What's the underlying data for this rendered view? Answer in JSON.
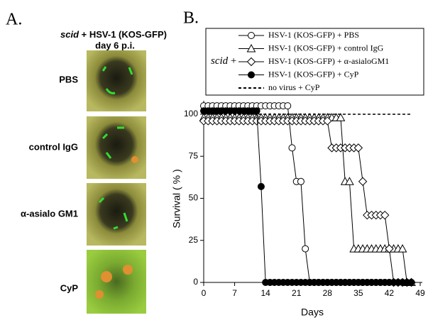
{
  "panel_a": {
    "label": "A.",
    "title": {
      "italic": "scid",
      "rest": "+ HSV-1 (KOS-GFP)"
    },
    "subtitle": "day 6 p.i.",
    "image_labels": [
      "PBS",
      "control IgG",
      "α-asialo GM1",
      "CyP"
    ]
  },
  "chart_data": {
    "type": "line",
    "panel_label": "B.",
    "x_label": "Days",
    "y_label": "Survival ( % )",
    "xlim": [
      0,
      49
    ],
    "ylim": [
      0,
      108
    ],
    "xticks": [
      0,
      7,
      14,
      21,
      28,
      35,
      42,
      49
    ],
    "yticks": [
      0,
      25,
      50,
      75,
      100
    ],
    "legend_prefix": {
      "italic": "scid",
      "rest": "+"
    },
    "x": [
      0,
      1,
      2,
      3,
      4,
      5,
      6,
      7,
      8,
      9,
      10,
      11,
      12,
      13,
      14,
      15,
      16,
      17,
      18,
      19,
      20,
      21,
      22,
      23,
      24,
      25,
      26,
      27,
      28,
      29,
      30,
      31,
      32,
      33,
      34,
      35,
      36,
      37,
      38,
      39,
      40,
      41,
      42,
      43,
      44,
      45,
      46,
      47
    ],
    "series": [
      {
        "name": "HSV-1 (KOS-GFP) + PBS",
        "color": "#000000",
        "marker": "circle-open",
        "values": [
          105,
          105,
          105,
          105,
          105,
          105,
          105,
          105,
          105,
          105,
          105,
          105,
          105,
          105,
          105,
          105,
          105,
          105,
          105,
          105,
          80,
          60,
          60,
          20,
          0,
          0,
          0,
          0,
          0,
          0,
          0,
          0,
          0,
          0,
          0,
          0,
          0,
          0,
          0,
          0,
          0,
          0,
          0,
          0,
          0,
          0,
          0,
          0
        ]
      },
      {
        "name": "HSV-1 (KOS-GFP) + control IgG",
        "color": "#000000",
        "marker": "triangle-open",
        "values": [
          98,
          98,
          98,
          98,
          98,
          98,
          98,
          98,
          98,
          98,
          98,
          98,
          98,
          98,
          98,
          98,
          98,
          98,
          98,
          98,
          98,
          98,
          98,
          98,
          98,
          98,
          98,
          98,
          98,
          98,
          98,
          98,
          60,
          60,
          20,
          20,
          20,
          20,
          20,
          20,
          20,
          20,
          20,
          20,
          20,
          20,
          0,
          0
        ]
      },
      {
        "name": "HSV-1 (KOS-GFP) + α-asialoGM1",
        "color": "#000000",
        "marker": "diamond-open",
        "values": [
          96,
          96,
          96,
          96,
          96,
          96,
          96,
          96,
          96,
          96,
          96,
          96,
          96,
          96,
          96,
          96,
          96,
          96,
          96,
          96,
          96,
          96,
          96,
          96,
          96,
          96,
          96,
          96,
          96,
          80,
          80,
          80,
          80,
          80,
          80,
          80,
          60,
          40,
          40,
          40,
          40,
          40,
          20,
          0,
          0,
          0,
          0,
          0
        ]
      },
      {
        "name": "HSV-1 (KOS-GFP) + CyP",
        "color": "#000000",
        "marker": "circle-filled",
        "values": [
          102,
          102,
          102,
          102,
          102,
          102,
          102,
          102,
          102,
          102,
          102,
          102,
          102,
          57,
          0,
          0,
          0,
          0,
          0,
          0,
          0,
          0,
          0,
          0,
          0,
          0,
          0,
          0,
          0,
          0,
          0,
          0,
          0,
          0,
          0,
          0,
          0,
          0,
          0,
          0,
          0,
          0,
          0,
          0,
          0,
          0,
          0,
          0
        ]
      },
      {
        "name": "no virus + CyP",
        "color": "#000000",
        "marker": "none",
        "dash": true,
        "x": [
          0,
          47
        ],
        "values": [
          100,
          100
        ]
      }
    ]
  }
}
